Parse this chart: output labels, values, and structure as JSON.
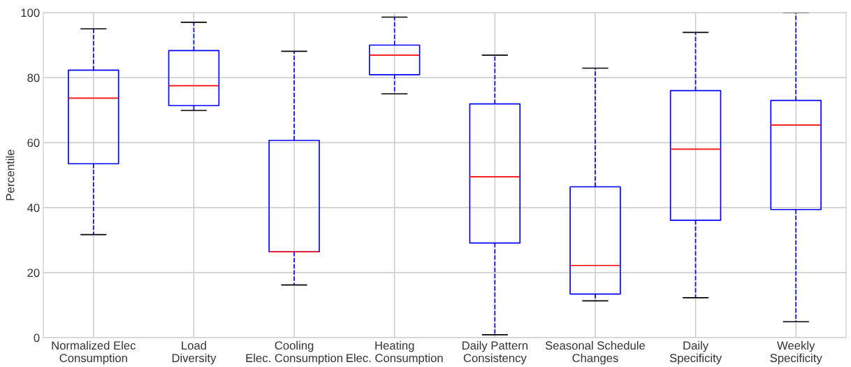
{
  "chart_data": {
    "type": "box",
    "ylabel": "Percentile",
    "categories": [
      "Normalized Elec\nConsumption",
      "Load\nDiversity",
      "Cooling\nElec. Consumption",
      "Heating\nElec. Consumption",
      "Daily Pattern\nConsistency",
      "Seasonal Schedule\nChanges",
      "Daily\nSpecificity",
      "Weekly\nSpecificity"
    ],
    "boxes": [
      {
        "low": 31.7,
        "q1": 53.5,
        "median": 73.7,
        "q3": 82.3,
        "high": 95.0
      },
      {
        "low": 69.9,
        "q1": 71.4,
        "median": 77.5,
        "q3": 88.3,
        "high": 97.0
      },
      {
        "low": 16.2,
        "q1": 26.4,
        "median": 26.4,
        "q3": 60.7,
        "high": 88.1
      },
      {
        "low": 75.0,
        "q1": 80.9,
        "median": 86.9,
        "q3": 90.0,
        "high": 98.6
      },
      {
        "low": 0.9,
        "q1": 29.1,
        "median": 49.5,
        "q3": 71.9,
        "high": 86.9
      },
      {
        "low": 11.3,
        "q1": 13.4,
        "median": 22.2,
        "q3": 46.4,
        "high": 82.9
      },
      {
        "low": 12.3,
        "q1": 36.1,
        "median": 58.0,
        "q3": 76.0,
        "high": 93.9
      },
      {
        "low": 4.9,
        "q1": 39.4,
        "median": 65.4,
        "q3": 73.0,
        "high": 100
      }
    ],
    "color": "#0000ff",
    "line_style": "dashed",
    "ylim": [
      0,
      100
    ],
    "yticks": [
      0,
      20,
      40,
      60,
      80,
      100
    ],
    "grid": true
  }
}
